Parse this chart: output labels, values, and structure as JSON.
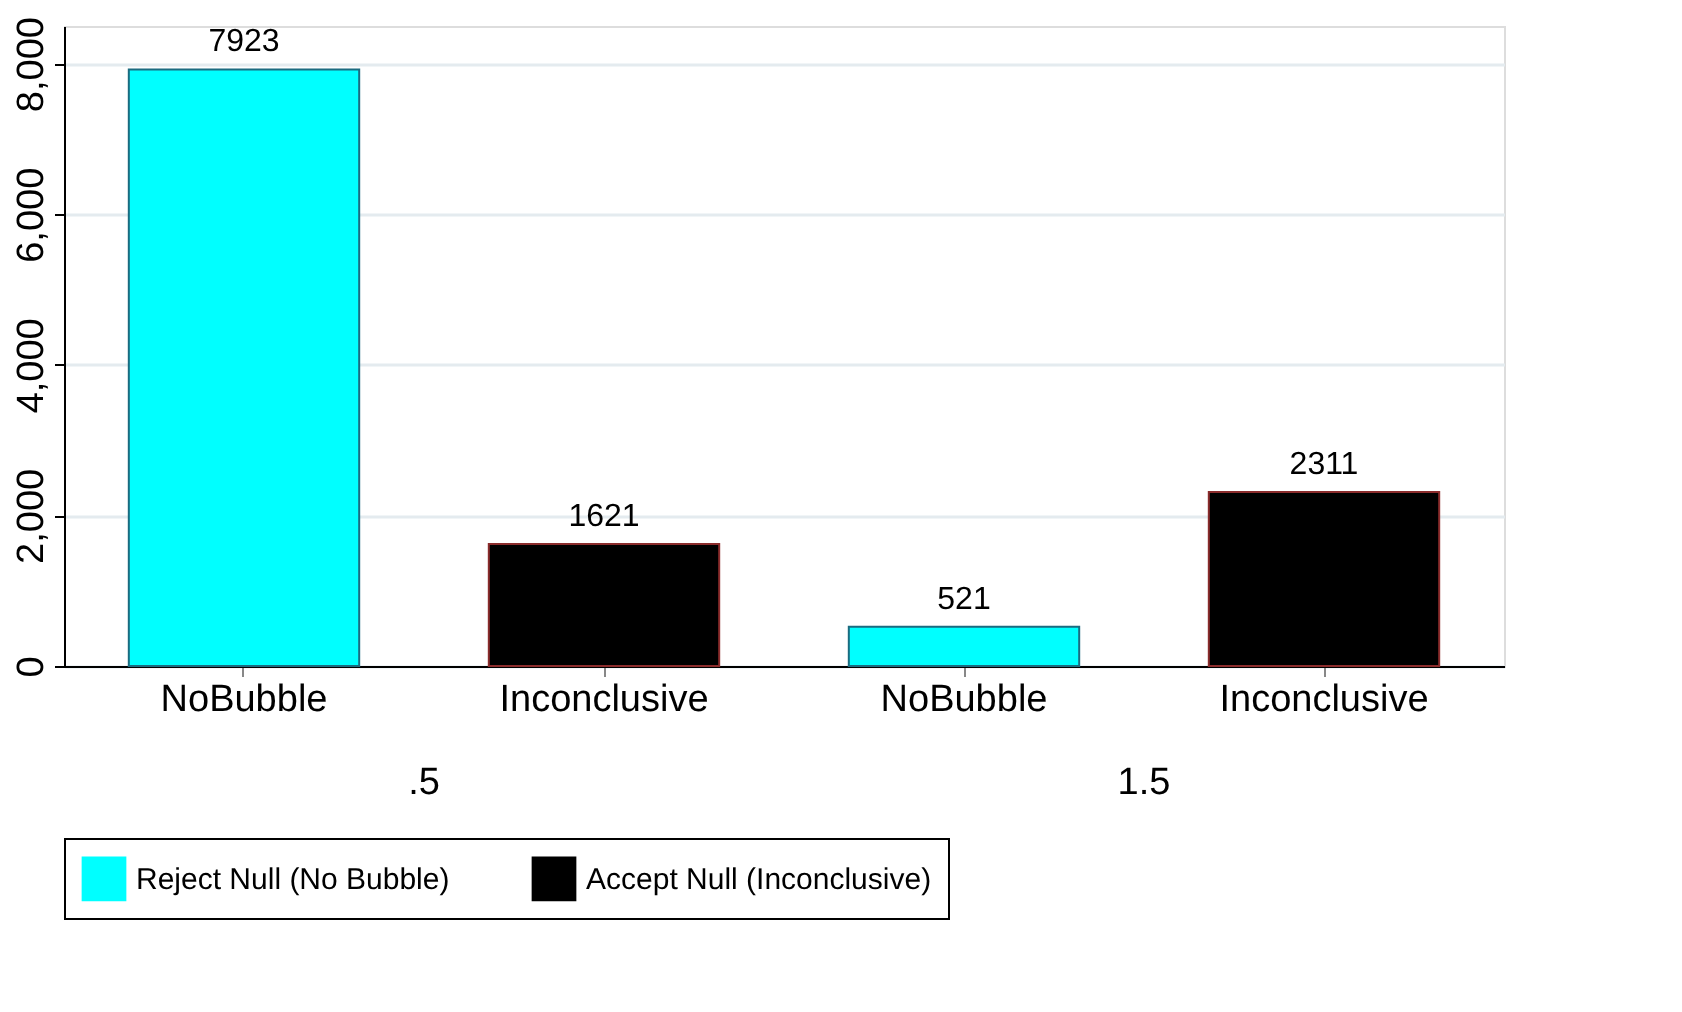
{
  "chart_data": {
    "type": "bar",
    "categories": [
      "NoBubble",
      "Inconclusive",
      "NoBubble",
      "Inconclusive"
    ],
    "series": [
      {
        "name": "Reject Null (No Bubble)",
        "color": "#00ffff",
        "values": [
          7923,
          null,
          521,
          null
        ]
      },
      {
        "name": "Accept Null (Inconclusive)",
        "color": "#000000",
        "values": [
          null,
          1621,
          null,
          2311
        ]
      }
    ],
    "annotations": [
      ".5",
      "1.5"
    ],
    "ylim": [
      0,
      8500
    ],
    "yticks": [
      0,
      {
        "value": 2000,
        "label": "2,000"
      },
      {
        "value": 4000,
        "label": "4,000"
      },
      {
        "value": 6000,
        "label": "6,000"
      },
      {
        "value": 8000,
        "label": "8,000"
      }
    ],
    "data_labels": true,
    "grid": "y",
    "legend": "bottom"
  }
}
